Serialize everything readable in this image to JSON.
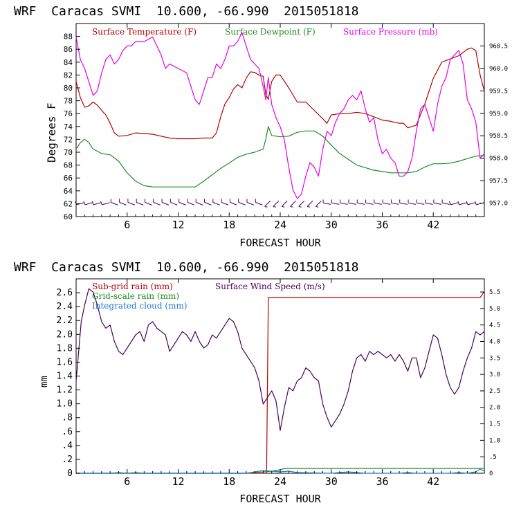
{
  "chart_data": [
    {
      "type": "line",
      "title": "WRF  Caracas SVMI  10.600, -66.990  2015051818",
      "xlabel": "FORECAST HOUR",
      "ylabel": "Degrees F",
      "xlim": [
        0,
        48
      ],
      "ylim": [
        60,
        90
      ],
      "y2lim": [
        956.7,
        961.0
      ],
      "xticks": [
        "6",
        "12",
        "18",
        "24",
        "30",
        "36",
        "42"
      ],
      "yticks": [
        "60",
        "62",
        "64",
        "66",
        "68",
        "70",
        "72",
        "74",
        "76",
        "78",
        "80",
        "82",
        "84",
        "86",
        "88"
      ],
      "y2ticks": [
        "957.0",
        "957.5",
        "958.0",
        "958.5",
        "959.0",
        "959.5",
        "960.0",
        "960.5"
      ],
      "series": [
        {
          "name": "Surface Temperature (F)",
          "color": "#b40000",
          "axis": "left",
          "x": [
            0,
            0.5,
            1,
            1.5,
            2,
            2.5,
            3,
            3.5,
            4,
            4.5,
            5,
            6,
            7,
            8,
            9,
            10,
            11,
            12,
            13,
            14,
            15,
            16,
            16.5,
            17,
            17.5,
            18,
            18.5,
            19,
            19.5,
            20,
            20.5,
            21,
            21.5,
            22,
            22.3,
            22.6,
            23,
            23.5,
            24,
            25,
            26,
            27,
            28,
            29,
            29.5,
            30,
            31,
            32,
            33,
            34,
            35,
            36,
            37,
            38,
            38.5,
            39,
            40,
            41,
            42,
            43,
            44,
            45,
            46,
            46.5,
            47,
            47.5,
            48
          ],
          "y": [
            81,
            78.5,
            77,
            77.2,
            77.8,
            77.3,
            76.5,
            75.8,
            74.5,
            73,
            72.5,
            72.6,
            73,
            72.9,
            72.8,
            72.5,
            72.2,
            72.1,
            72.1,
            72.1,
            72.2,
            72.2,
            73,
            75.5,
            77.5,
            78.5,
            79.8,
            80.5,
            80,
            81.5,
            82.5,
            82.4,
            82,
            81.8,
            79,
            78.2,
            81,
            82,
            82,
            80,
            77.8,
            77.8,
            76.5,
            75.2,
            74.5,
            75.8,
            76,
            76,
            76.2,
            76,
            75.5,
            75,
            74.8,
            74.5,
            74.5,
            73.8,
            74.2,
            77.5,
            81.5,
            84,
            84.5,
            85,
            86,
            86.2,
            85.8,
            82,
            79.5
          ]
        },
        {
          "name": "Surface Dewpoint (F)",
          "color": "#1e8c1e",
          "axis": "left",
          "x": [
            0,
            0.5,
            1,
            1.5,
            2,
            3,
            4,
            5,
            6,
            7,
            8,
            9,
            10,
            11,
            12,
            13,
            14,
            15,
            16,
            17,
            18,
            19,
            20,
            21,
            22,
            22.3,
            22.6,
            23,
            24,
            25,
            26,
            27,
            28,
            29,
            30,
            31,
            32,
            33,
            34,
            35,
            36,
            37,
            38,
            39,
            40,
            41,
            42,
            43,
            44,
            45,
            46,
            47,
            48
          ],
          "y": [
            70.5,
            71.5,
            72,
            71.5,
            70.5,
            69.8,
            69.6,
            68.6,
            66.8,
            65.5,
            64.8,
            64.6,
            64.6,
            64.6,
            64.6,
            64.6,
            64.6,
            65.5,
            66.5,
            67.5,
            68.3,
            69.2,
            69.7,
            70,
            70.5,
            72,
            74,
            72.6,
            72.4,
            72.5,
            73.1,
            73.3,
            73.3,
            72.5,
            71.1,
            69.8,
            68.9,
            68,
            67.6,
            67.2,
            67,
            66.8,
            66.8,
            66.8,
            67,
            67.7,
            68.2,
            68.2,
            68.3,
            68.6,
            69,
            69.4,
            69.5
          ]
        },
        {
          "name": "Surface Pressure (mb)",
          "color": "#e600e6",
          "axis": "right",
          "x": [
            0,
            0.5,
            1,
            1.5,
            2,
            2.5,
            3,
            3.5,
            4,
            4.5,
            5,
            5.5,
            6,
            6.5,
            7,
            8,
            9,
            10,
            10.5,
            11,
            12,
            13,
            13.5,
            14,
            14.5,
            15,
            15.5,
            16,
            16.5,
            17,
            17.5,
            18,
            18.5,
            19,
            19.5,
            20,
            20.5,
            21,
            21.5,
            22,
            22.3,
            22.6,
            23,
            23.5,
            24,
            24.5,
            25,
            25.5,
            26,
            26.5,
            27,
            27.5,
            28,
            28.5,
            29,
            29.5,
            30,
            30.5,
            31,
            31.5,
            32,
            32.5,
            33,
            33.5,
            34,
            34.5,
            35,
            35.5,
            36,
            36.5,
            37,
            37.5,
            38,
            38.5,
            39,
            39.5,
            40,
            40.5,
            41,
            41.5,
            42,
            42.5,
            43,
            43.5,
            44,
            44.5,
            45,
            45.5,
            46,
            46.5,
            47,
            47.5,
            48
          ],
          "y": [
            960.7,
            960.2,
            960,
            959.7,
            959.4,
            959.5,
            959.9,
            960.2,
            960.3,
            960.1,
            960.2,
            960.4,
            960.5,
            960.5,
            960.6,
            960.6,
            960.7,
            960.3,
            960,
            960.1,
            960,
            959.9,
            959.6,
            959.3,
            959.2,
            959.5,
            959.8,
            959.8,
            960.1,
            960,
            960.2,
            960.5,
            960.5,
            960.6,
            960.8,
            960.5,
            960.2,
            960.1,
            960,
            959.6,
            959.3,
            959.8,
            959.2,
            958.9,
            958.7,
            958.4,
            957.8,
            957.3,
            957.1,
            957.2,
            957.6,
            957.9,
            957.8,
            957.6,
            958.2,
            958.6,
            958.5,
            958.8,
            959,
            959.1,
            959.3,
            959.4,
            959.3,
            959.5,
            959.1,
            958.8,
            958.9,
            958.4,
            958.1,
            958.2,
            958,
            957.9,
            957.6,
            957.6,
            957.7,
            958,
            958.6,
            959.1,
            959.2,
            958.9,
            958.6,
            959.2,
            959.6,
            959.8,
            960.2,
            960.3,
            960.4,
            960.1,
            959.3,
            959.1,
            958.8,
            958,
            958.1
          ]
        }
      ],
      "wind_barbs": {
        "hours": [
          0.5,
          1.5,
          2.5,
          3.5,
          4.5,
          5.5,
          6.5,
          7.5,
          8.5,
          9.5,
          10.5,
          11.5,
          12.5,
          13.5,
          14.5,
          15.5,
          16.5,
          17.5,
          18.5,
          19.5,
          20.5,
          21.5,
          22.5,
          23.5,
          24.5,
          25.5,
          26.5,
          27.5,
          28.5,
          29.5,
          30.5,
          31.5,
          32.5,
          33.5,
          34.5,
          35.5,
          36.5,
          37.5,
          38.5,
          39.5,
          40.5,
          41.5,
          42.5,
          43.5,
          44.5,
          45.5,
          46.5,
          47.5
        ],
        "direction": [
          "ENE",
          "ENE",
          "ENE",
          "ENE",
          "NE",
          "NE",
          "NE",
          "NE",
          "NE",
          "NE",
          "NE",
          "NE",
          "NE",
          "NE",
          "NE",
          "NE",
          "NE",
          "NE",
          "NE",
          "NE",
          "NE",
          "NE",
          "SW",
          "SW",
          "SW",
          "SW",
          "SW",
          "SW",
          "SW",
          "E",
          "E",
          "E",
          "E",
          "E",
          "E",
          "E",
          "E",
          "E",
          "E",
          "E",
          "E",
          "E",
          "E",
          "E",
          "ENE",
          "ENE",
          "ENE",
          "ENE"
        ]
      }
    },
    {
      "type": "line",
      "title": "WRF  Caracas SVMI  10.600, -66.990  2015051818",
      "xlabel": "FORECAST HOUR",
      "ylabel": "mm",
      "xlim": [
        0,
        48
      ],
      "ylim": [
        0,
        2.8
      ],
      "y2lim": [
        0,
        5.9
      ],
      "xticks": [
        "6",
        "12",
        "18",
        "24",
        "30",
        "36",
        "42"
      ],
      "yticks": [
        "0",
        ".2",
        ".4",
        ".6",
        ".8",
        "1.0",
        "1.2",
        "1.4",
        "1.6",
        "1.8",
        "2.0",
        "2.2",
        "2.4",
        "2.6"
      ],
      "y2ticks": [
        "0",
        ".5",
        "1.0",
        "1.5",
        "2.0",
        "2.5",
        "3.0",
        "3.5",
        "4.0",
        "4.5",
        "5.0",
        "5.5"
      ],
      "series": [
        {
          "name": "Sub-grid rain (mm)",
          "color": "#b40000",
          "axis": "left",
          "x": [
            0,
            21.8,
            22.4,
            22.6,
            47.5,
            48
          ],
          "y": [
            0,
            0,
            0,
            2.53,
            2.53,
            2.62
          ]
        },
        {
          "name": "Grid-scale rain (mm)",
          "color": "#1e8c1e",
          "axis": "left",
          "x": [
            0,
            20,
            22,
            23,
            24,
            24.5,
            47,
            48
          ],
          "y": [
            0,
            0,
            0.02,
            0.03,
            0.05,
            0.07,
            0.07,
            0.07
          ]
        },
        {
          "name": "Integrated cloud (mm)",
          "color": "#1e78dc",
          "axis": "left",
          "x": [
            0,
            4,
            5,
            6,
            7,
            8,
            20,
            21,
            22,
            23,
            24,
            25,
            26,
            30,
            31,
            32,
            33,
            34,
            38,
            39,
            40,
            44,
            45,
            46,
            47,
            47.5,
            48
          ],
          "y": [
            0,
            0,
            0.01,
            0,
            0.01,
            0,
            0,
            0.02,
            0.04,
            0.03,
            0.02,
            0.03,
            0.01,
            0,
            0.01,
            0.02,
            0.01,
            0,
            0,
            0.01,
            0,
            0,
            0.01,
            0,
            0.02,
            0.06,
            0.03
          ]
        },
        {
          "name": "Surface Wind Speed (m/s)",
          "color": "#46005a",
          "axis": "right",
          "x": [
            0,
            0.3,
            0.6,
            1,
            1.5,
            2,
            2.5,
            3,
            3.5,
            4,
            4.5,
            5,
            5.5,
            6,
            6.5,
            7,
            7.5,
            8,
            8.5,
            9,
            9.5,
            10,
            10.5,
            11,
            11.5,
            12,
            12.5,
            13,
            13.5,
            14,
            14.5,
            15,
            15.5,
            16,
            16.5,
            17,
            17.5,
            18,
            18.5,
            19,
            19.5,
            20,
            20.5,
            21,
            21.5,
            22,
            22.5,
            23,
            23.5,
            24,
            24.5,
            25,
            25.5,
            26,
            26.5,
            27,
            27.5,
            28,
            28.5,
            29,
            29.5,
            30,
            30.5,
            31,
            31.5,
            32,
            32.5,
            33,
            33.5,
            34,
            34.5,
            35,
            35.5,
            36,
            36.5,
            37,
            37.5,
            38,
            38.5,
            39,
            39.5,
            40,
            40.5,
            41,
            41.5,
            42,
            42.5,
            43,
            43.5,
            44,
            44.5,
            45,
            45.5,
            46,
            46.5,
            47,
            47.5,
            48
          ],
          "y": [
            2.8,
            3.7,
            4.6,
            5.1,
            5.6,
            5.5,
            5.1,
            4.6,
            4.4,
            4.5,
            4,
            3.7,
            3.6,
            3.8,
            4,
            4.2,
            4.3,
            4,
            4.5,
            4.6,
            4.4,
            4.3,
            4.2,
            3.7,
            3.9,
            4.1,
            4.3,
            4.2,
            4,
            4.3,
            4,
            3.8,
            3.9,
            4.2,
            4.1,
            4.3,
            4.5,
            4.7,
            4.6,
            4.3,
            3.8,
            3.6,
            3.4,
            3.2,
            2.8,
            2.1,
            2.3,
            2.5,
            2.2,
            1.3,
            2,
            2.6,
            2.5,
            2.8,
            2.9,
            3.2,
            3.1,
            2.9,
            2.8,
            2.1,
            1.7,
            1.4,
            1.6,
            1.8,
            2.1,
            2.5,
            3.1,
            3.5,
            3.6,
            3.4,
            3.7,
            3.6,
            3.7,
            3.6,
            3.5,
            3.6,
            3.4,
            3.6,
            3.4,
            3.1,
            3.5,
            3.5,
            2.9,
            3.2,
            3.7,
            4.2,
            4.1,
            3.6,
            3,
            2.6,
            2.4,
            2.6,
            3.1,
            3.5,
            3.8,
            4.3,
            4.2,
            4.3
          ]
        }
      ]
    }
  ]
}
